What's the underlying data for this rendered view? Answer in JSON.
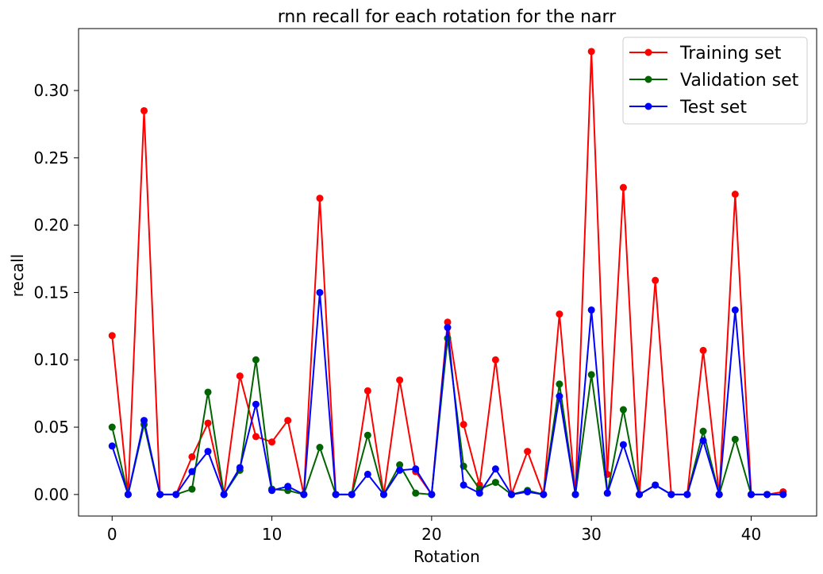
{
  "chart_data": {
    "type": "line",
    "title": "rnn recall for each rotation for the narr",
    "xlabel": "Rotation",
    "ylabel": "recall",
    "x": [
      0,
      1,
      2,
      3,
      4,
      5,
      6,
      7,
      8,
      9,
      10,
      11,
      12,
      13,
      14,
      15,
      16,
      17,
      18,
      19,
      20,
      21,
      22,
      23,
      24,
      25,
      26,
      27,
      28,
      29,
      30,
      31,
      32,
      33,
      34,
      35,
      36,
      37,
      38,
      39,
      40,
      41,
      42
    ],
    "xlim": [
      -2.1,
      44.1
    ],
    "ylim": [
      -0.016,
      0.346
    ],
    "xticks": [
      "0",
      "10",
      "20",
      "30",
      "40"
    ],
    "xtick_values": [
      0,
      10,
      20,
      30,
      40
    ],
    "yticks": [
      "0.00",
      "0.05",
      "0.10",
      "0.15",
      "0.20",
      "0.25",
      "0.30"
    ],
    "ytick_values": [
      0.0,
      0.05,
      0.1,
      0.15,
      0.2,
      0.25,
      0.3
    ],
    "grid": false,
    "legend_position": "top-right",
    "series": [
      {
        "name": "Training set",
        "color": "#ff0000",
        "values": [
          0.118,
          0.0,
          0.285,
          0.0,
          0.0,
          0.028,
          0.053,
          0.0,
          0.088,
          0.043,
          0.039,
          0.055,
          0.0,
          0.22,
          0.0,
          0.0,
          0.077,
          0.0,
          0.085,
          0.017,
          0.0,
          0.128,
          0.052,
          0.007,
          0.1,
          0.0,
          0.032,
          0.0,
          0.134,
          0.0,
          0.329,
          0.015,
          0.228,
          0.0,
          0.159,
          0.0,
          0.0,
          0.107,
          0.0,
          0.223,
          0.0,
          0.0,
          0.002
        ]
      },
      {
        "name": "Validation set",
        "color": "#006400",
        "values": [
          0.05,
          0.0,
          0.052,
          0.0,
          0.0,
          0.004,
          0.076,
          0.0,
          0.018,
          0.1,
          0.004,
          0.003,
          0.0,
          0.035,
          0.0,
          0.0,
          0.044,
          0.0,
          0.022,
          0.001,
          0.0,
          0.116,
          0.021,
          0.004,
          0.009,
          0.0,
          0.003,
          0.0,
          0.082,
          0.0,
          0.089,
          0.001,
          0.063,
          0.0,
          0.007,
          0.0,
          0.0,
          0.047,
          0.0,
          0.041,
          0.0,
          0.0,
          0.0
        ]
      },
      {
        "name": "Test set",
        "color": "#0000ff",
        "values": [
          0.036,
          0.0,
          0.055,
          0.0,
          0.0,
          0.017,
          0.032,
          0.0,
          0.02,
          0.067,
          0.003,
          0.006,
          0.0,
          0.15,
          0.0,
          0.0,
          0.015,
          0.0,
          0.018,
          0.019,
          0.0,
          0.124,
          0.007,
          0.001,
          0.019,
          0.0,
          0.002,
          0.0,
          0.073,
          0.0,
          0.137,
          0.001,
          0.037,
          0.0,
          0.007,
          0.0,
          0.0,
          0.04,
          0.0,
          0.137,
          0.0,
          0.0,
          0.0
        ]
      }
    ]
  }
}
